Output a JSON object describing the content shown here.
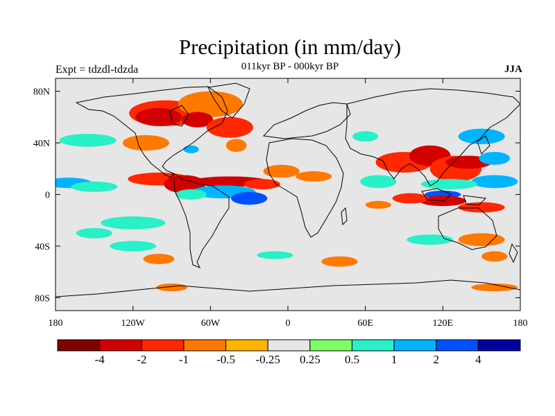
{
  "title": "Precipitation (in mm/day)",
  "subtitle": "011kyr BP - 000kyr BP",
  "left_label": "Expt = tdzdl-tdzda",
  "right_label": "JJA",
  "axes": {
    "lon_ticks": [
      {
        "value": -180,
        "label": "180"
      },
      {
        "value": -120,
        "label": "120W"
      },
      {
        "value": -60,
        "label": "60W"
      },
      {
        "value": 0,
        "label": "0"
      },
      {
        "value": 60,
        "label": "60E"
      },
      {
        "value": 120,
        "label": "120E"
      },
      {
        "value": 180,
        "label": "180"
      }
    ],
    "lat_ticks": [
      {
        "value": 80,
        "label": "80N"
      },
      {
        "value": 40,
        "label": "40N"
      },
      {
        "value": 0,
        "label": "0"
      },
      {
        "value": -40,
        "label": "40S"
      },
      {
        "value": -80,
        "label": "80S"
      }
    ],
    "lon_range": [
      -180,
      180
    ],
    "lat_range": [
      -90,
      90
    ]
  },
  "colorbar": {
    "colors": [
      "#800000",
      "#d20000",
      "#ff2800",
      "#ff7800",
      "#ffb400",
      "#e6e6e6",
      "#80ff64",
      "#28f0c8",
      "#00b4ff",
      "#0050ff",
      "#0000a0"
    ],
    "labels": [
      "-4",
      "-2",
      "-1",
      "-0.5",
      "-0.25",
      "0.25",
      "0.5",
      "1",
      "2",
      "4"
    ]
  },
  "anomaly_patches": [
    {
      "lon": -95,
      "lat": 63,
      "rx": 28,
      "ry": 10,
      "class": "-1"
    },
    {
      "lon": -60,
      "lat": 70,
      "rx": 25,
      "ry": 10,
      "class": "-0.5"
    },
    {
      "lon": -100,
      "lat": 60,
      "rx": 18,
      "ry": 7,
      "class": "-2"
    },
    {
      "lon": -70,
      "lat": 58,
      "rx": 12,
      "ry": 6,
      "class": "-2"
    },
    {
      "lon": -45,
      "lat": 52,
      "rx": 18,
      "ry": 8,
      "class": "-1"
    },
    {
      "lon": -110,
      "lat": 40,
      "rx": 18,
      "ry": 6,
      "class": "-0.5"
    },
    {
      "lon": -75,
      "lat": 35,
      "rx": 6,
      "ry": 3,
      "class": "1"
    },
    {
      "lon": -40,
      "lat": 38,
      "rx": 8,
      "ry": 5,
      "class": "-0.5"
    },
    {
      "lon": -155,
      "lat": 42,
      "rx": 22,
      "ry": 5,
      "class": "0.5"
    },
    {
      "lon": -170,
      "lat": 9,
      "rx": 18,
      "ry": 4,
      "class": "1"
    },
    {
      "lon": -150,
      "lat": 6,
      "rx": 18,
      "ry": 4,
      "class": "0.5"
    },
    {
      "lon": -100,
      "lat": 12,
      "rx": 24,
      "ry": 5,
      "class": "-1"
    },
    {
      "lon": -80,
      "lat": 8,
      "rx": 16,
      "ry": 7,
      "class": "-2"
    },
    {
      "lon": -45,
      "lat": 10,
      "rx": 30,
      "ry": 4,
      "class": "-2"
    },
    {
      "lon": -20,
      "lat": 8,
      "rx": 14,
      "ry": 4,
      "class": "-1"
    },
    {
      "lon": -50,
      "lat": 2,
      "rx": 25,
      "ry": 5,
      "class": "1"
    },
    {
      "lon": -75,
      "lat": 0,
      "rx": 12,
      "ry": 4,
      "class": "0.5"
    },
    {
      "lon": -30,
      "lat": -3,
      "rx": 14,
      "ry": 5,
      "class": "2"
    },
    {
      "lon": -5,
      "lat": 18,
      "rx": 14,
      "ry": 5,
      "class": "-0.5"
    },
    {
      "lon": 20,
      "lat": 14,
      "rx": 14,
      "ry": 4,
      "class": "-0.5"
    },
    {
      "lon": 70,
      "lat": 10,
      "rx": 14,
      "ry": 5,
      "class": "0.5"
    },
    {
      "lon": 90,
      "lat": 25,
      "rx": 22,
      "ry": 8,
      "class": "-1"
    },
    {
      "lon": 110,
      "lat": 30,
      "rx": 16,
      "ry": 8,
      "class": "-2"
    },
    {
      "lon": 130,
      "lat": 20,
      "rx": 20,
      "ry": 10,
      "class": "-1"
    },
    {
      "lon": 140,
      "lat": 25,
      "rx": 18,
      "ry": 5,
      "class": "-2"
    },
    {
      "lon": 160,
      "lat": 28,
      "rx": 12,
      "ry": 5,
      "class": "1"
    },
    {
      "lon": 150,
      "lat": 45,
      "rx": 18,
      "ry": 6,
      "class": "1"
    },
    {
      "lon": 160,
      "lat": 10,
      "rx": 18,
      "ry": 5,
      "class": "1"
    },
    {
      "lon": 125,
      "lat": 8,
      "rx": 22,
      "ry": 4,
      "class": "0.5"
    },
    {
      "lon": 120,
      "lat": 0,
      "rx": 14,
      "ry": 3,
      "class": "2"
    },
    {
      "lon": 120,
      "lat": -5,
      "rx": 18,
      "ry": 4,
      "class": "-2"
    },
    {
      "lon": 95,
      "lat": -3,
      "rx": 14,
      "ry": 4,
      "class": "-1"
    },
    {
      "lon": 150,
      "lat": -10,
      "rx": 18,
      "ry": 4,
      "class": "-1"
    },
    {
      "lon": 70,
      "lat": -8,
      "rx": 10,
      "ry": 3,
      "class": "-0.5"
    },
    {
      "lon": -120,
      "lat": -22,
      "rx": 25,
      "ry": 5,
      "class": "0.5"
    },
    {
      "lon": -150,
      "lat": -30,
      "rx": 14,
      "ry": 4,
      "class": "0.5"
    },
    {
      "lon": -120,
      "lat": -40,
      "rx": 18,
      "ry": 4,
      "class": "0.5"
    },
    {
      "lon": -100,
      "lat": -50,
      "rx": 12,
      "ry": 4,
      "class": "-0.5"
    },
    {
      "lon": -10,
      "lat": -47,
      "rx": 14,
      "ry": 3,
      "class": "0.5"
    },
    {
      "lon": 40,
      "lat": -52,
      "rx": 14,
      "ry": 4,
      "class": "-0.5"
    },
    {
      "lon": 110,
      "lat": -35,
      "rx": 18,
      "ry": 4,
      "class": "0.5"
    },
    {
      "lon": 150,
      "lat": -35,
      "rx": 18,
      "ry": 5,
      "class": "-0.5"
    },
    {
      "lon": 160,
      "lat": -48,
      "rx": 10,
      "ry": 4,
      "class": "-0.5"
    },
    {
      "lon": 160,
      "lat": -72,
      "rx": 18,
      "ry": 3,
      "class": "-0.5"
    },
    {
      "lon": -90,
      "lat": -72,
      "rx": 12,
      "ry": 3,
      "class": "-0.5"
    },
    {
      "lon": 60,
      "lat": 45,
      "rx": 10,
      "ry": 4,
      "class": "0.5"
    }
  ]
}
